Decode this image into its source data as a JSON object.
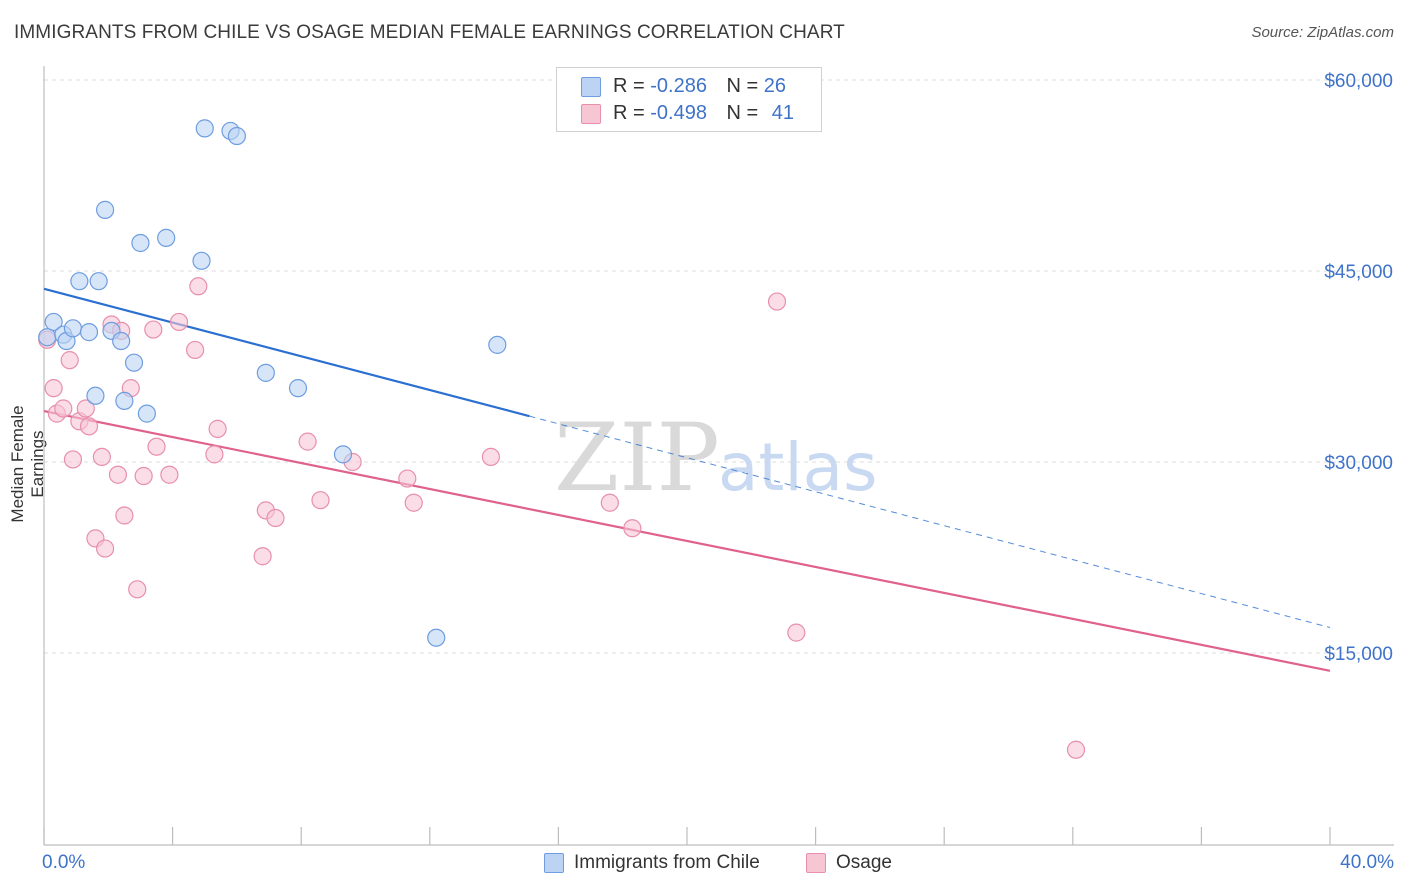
{
  "header": {
    "title": "IMMIGRANTS FROM CHILE VS OSAGE MEDIAN FEMALE EARNINGS CORRELATION CHART",
    "source": "Source: ZipAtlas.com"
  },
  "watermark": {
    "zip": "ZIP",
    "atlas": "atlas"
  },
  "legend": {
    "rows": [
      {
        "r_label": "R =",
        "r_value": "-0.286",
        "n_label": "N =",
        "n_value": "26"
      },
      {
        "r_label": "R =",
        "r_value": "-0.498",
        "n_label": "N =",
        "n_value": "41"
      }
    ]
  },
  "bottom_legend": {
    "series1": "Immigrants from Chile",
    "series2": "Osage"
  },
  "colors": {
    "blue_fill": "#bcd3f3",
    "blue_stroke": "#6e9de0",
    "blue_line": "#2b6fd1",
    "pink_fill": "#f7c6d5",
    "pink_stroke": "#e88fac",
    "pink_line": "#e0608e",
    "axis_text": "#3f73c8",
    "grid": "#dcdcdc"
  },
  "chart_data": {
    "type": "scatter",
    "title": "IMMIGRANTS FROM CHILE VS OSAGE MEDIAN FEMALE EARNINGS CORRELATION CHART",
    "xlabel": "",
    "ylabel": "Median Female Earnings",
    "xlim": [
      0,
      40
    ],
    "ylim": [
      0,
      62000
    ],
    "x_tick_labels": [
      "0.0%",
      "40.0%"
    ],
    "y_ticks": [
      {
        "value": 15000,
        "label": "$15,000"
      },
      {
        "value": 30000,
        "label": "$30,000"
      },
      {
        "value": 45000,
        "label": "$45,000"
      },
      {
        "value": 60000,
        "label": "$60,000"
      }
    ],
    "grid": "horizontal dashed",
    "legend_position": "top-center",
    "series": [
      {
        "name": "Immigrants from Chile",
        "color": "blue",
        "points": [
          [
            0.1,
            39.8
          ],
          [
            0.3,
            41.0
          ],
          [
            0.6,
            40.0
          ],
          [
            0.7,
            39.5
          ],
          [
            0.9,
            40.5
          ],
          [
            1.1,
            44.2
          ],
          [
            1.4,
            40.2
          ],
          [
            1.6,
            35.2
          ],
          [
            1.7,
            44.2
          ],
          [
            1.9,
            49.8
          ],
          [
            2.1,
            40.3
          ],
          [
            2.4,
            39.5
          ],
          [
            2.5,
            34.8
          ],
          [
            2.8,
            37.8
          ],
          [
            3.0,
            47.2
          ],
          [
            3.2,
            33.8
          ],
          [
            3.8,
            47.6
          ],
          [
            4.9,
            45.8
          ],
          [
            5.0,
            56.2
          ],
          [
            5.8,
            56.0
          ],
          [
            6.0,
            55.6
          ],
          [
            6.9,
            37.0
          ],
          [
            7.9,
            35.8
          ],
          [
            9.3,
            30.6
          ],
          [
            12.2,
            16.2
          ],
          [
            14.1,
            39.2
          ]
        ],
        "trend": {
          "x0": 0,
          "y0": 43.6,
          "x1": 15.1,
          "y1": 33.6,
          "dashed_to_x": 40,
          "dashed_to_y": 17.0
        }
      },
      {
        "name": "Osage",
        "color": "pink",
        "points": [
          [
            0.1,
            39.6
          ],
          [
            0.3,
            35.8
          ],
          [
            0.4,
            33.8
          ],
          [
            0.6,
            34.2
          ],
          [
            0.8,
            38.0
          ],
          [
            0.9,
            30.2
          ],
          [
            1.1,
            33.2
          ],
          [
            1.3,
            34.2
          ],
          [
            1.4,
            32.8
          ],
          [
            1.6,
            24.0
          ],
          [
            1.8,
            30.4
          ],
          [
            1.9,
            23.2
          ],
          [
            2.1,
            40.8
          ],
          [
            2.3,
            29.0
          ],
          [
            2.4,
            40.3
          ],
          [
            2.5,
            25.8
          ],
          [
            2.7,
            35.8
          ],
          [
            2.9,
            20.0
          ],
          [
            3.1,
            28.9
          ],
          [
            3.4,
            40.4
          ],
          [
            3.5,
            31.2
          ],
          [
            3.9,
            29.0
          ],
          [
            4.2,
            41.0
          ],
          [
            4.7,
            38.8
          ],
          [
            4.8,
            43.8
          ],
          [
            5.3,
            30.6
          ],
          [
            5.4,
            32.6
          ],
          [
            6.8,
            22.6
          ],
          [
            6.9,
            26.2
          ],
          [
            7.2,
            25.6
          ],
          [
            8.2,
            31.6
          ],
          [
            8.6,
            27.0
          ],
          [
            9.6,
            30.0
          ],
          [
            11.3,
            28.7
          ],
          [
            11.5,
            26.8
          ],
          [
            13.9,
            30.4
          ],
          [
            17.6,
            26.8
          ],
          [
            18.3,
            24.8
          ],
          [
            22.8,
            42.6
          ],
          [
            23.4,
            16.6
          ],
          [
            32.1,
            7.4
          ]
        ],
        "trend": {
          "x0": 0,
          "y0": 34.0,
          "x1": 40,
          "y1": 13.6
        }
      }
    ],
    "y_values_unit": "thousand USD"
  }
}
